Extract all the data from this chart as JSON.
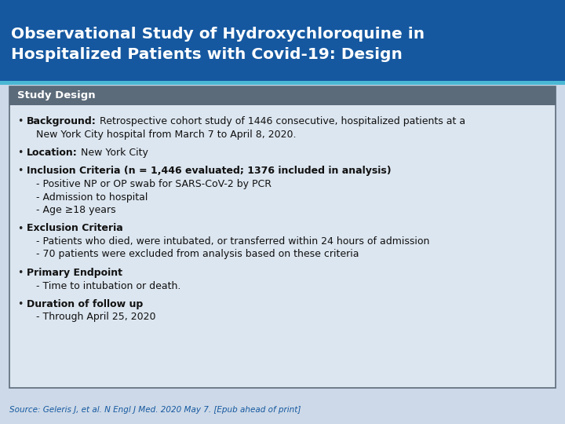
{
  "title_line1": "Observational Study of Hydroxychloroquine in",
  "title_line2": "Hospitalized Patients with Covid-19: Design",
  "title_bg_color": "#1558a0",
  "title_text_color": "#ffffff",
  "header_text": "Study Design",
  "header_bg_color": "#5c6b7a",
  "header_text_color": "#ffffff",
  "body_bg_color": "#dce6f0",
  "body_border_color": "#5c6b7a",
  "source_text": "Source: Geleris J, et al. N Engl J Med. 2020 May 7. [Epub ahead of print]",
  "source_color": "#1558a0",
  "overall_bg": "#cdd9e8",
  "cyan_line_color": "#4ab8d4",
  "bullet_color": "#222222",
  "text_color": "#111111",
  "lines": [
    {
      "bullet": true,
      "bold": "Background:",
      "normal": " Retrospective cohort study of 1446 consecutive, hospitalized patients at a"
    },
    {
      "bullet": false,
      "bold": "",
      "normal": "   New York City hospital from March 7 to April 8, 2020."
    },
    {
      "bullet": true,
      "bold": "Location:",
      "normal": " New York City"
    },
    {
      "bullet": true,
      "bold": "Inclusion Criteria (n = 1,446 evaluated; 1376 included in analysis)",
      "normal": ""
    },
    {
      "bullet": false,
      "bold": "",
      "normal": "   - Positive NP or OP swab for SARS-CoV-2 by PCR"
    },
    {
      "bullet": false,
      "bold": "",
      "normal": "   - Admission to hospital"
    },
    {
      "bullet": false,
      "bold": "",
      "normal": "   - Age ≥18 years"
    },
    {
      "bullet": true,
      "bold": "Exclusion Criteria",
      "normal": ""
    },
    {
      "bullet": false,
      "bold": "",
      "normal": "   - Patients who died, were intubated, or transferred within 24 hours of admission"
    },
    {
      "bullet": false,
      "bold": "",
      "normal": "   - 70 patients were excluded from analysis based on these criteria"
    },
    {
      "bullet": true,
      "bold": "Primary Endpoint",
      "normal": ""
    },
    {
      "bullet": false,
      "bold": "",
      "normal": "   - Time to intubation or death."
    },
    {
      "bullet": true,
      "bold": "Duration of follow up",
      "normal": ""
    },
    {
      "bullet": false,
      "bold": "",
      "normal": "   - Through April 25, 2020"
    }
  ],
  "spacer_after": [
    1,
    2,
    6,
    9,
    11,
    13
  ],
  "font_size": 9.0,
  "title_font_size": 14.5
}
